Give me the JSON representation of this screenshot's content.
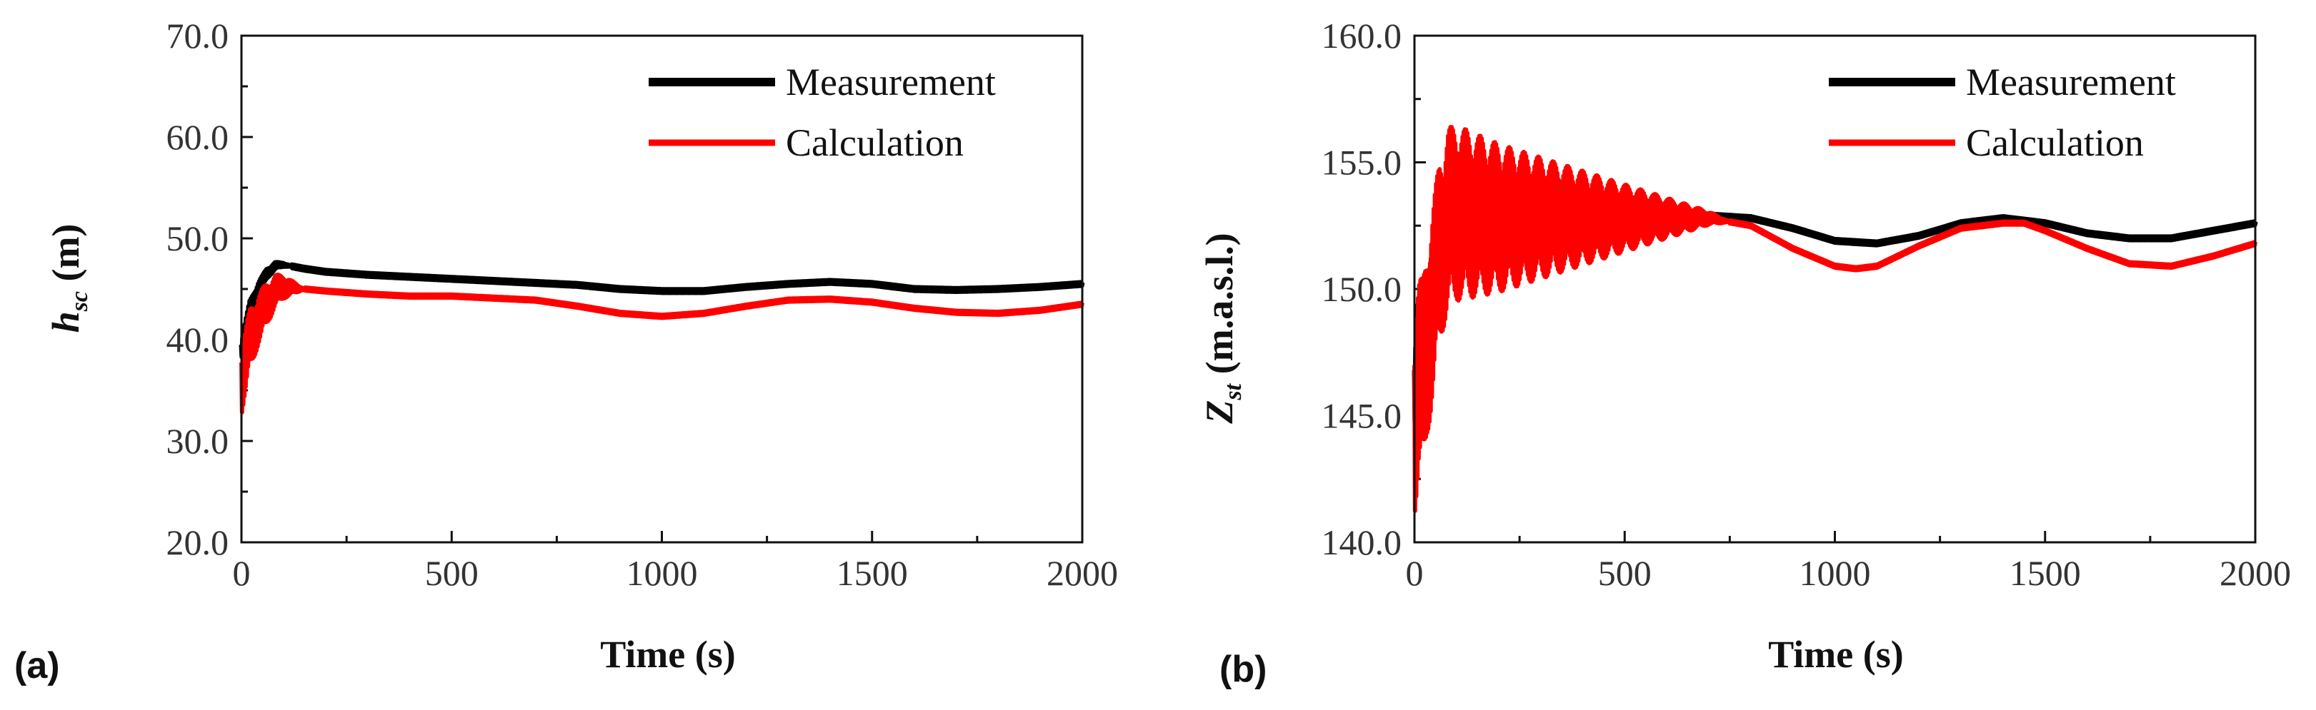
{
  "chart_data": [
    {
      "type": "line",
      "panel_label": "(a)",
      "xlabel": "Time (s)",
      "ylabel_main": "h",
      "ylabel_sub": "sc",
      "ylabel_unit": " (m)",
      "xlim": [
        0,
        2000
      ],
      "ylim": [
        20,
        70
      ],
      "x_ticks": [
        0,
        500,
        1000,
        1500,
        2000
      ],
      "x_tick_labels": [
        "0",
        "500",
        "1000",
        "1500",
        "2000"
      ],
      "y_ticks": [
        20,
        30,
        40,
        50,
        60,
        70
      ],
      "y_tick_labels": [
        "20.0",
        "30.0",
        "40.0",
        "50.0",
        "60.0",
        "70.0"
      ],
      "legend_position": "top-right",
      "series": [
        {
          "name": "Measurement",
          "color": "#000000",
          "x": [
            0,
            10,
            20,
            40,
            60,
            80,
            100,
            150,
            200,
            300,
            400,
            500,
            600,
            700,
            800,
            900,
            1000,
            1100,
            1200,
            1300,
            1400,
            1500,
            1600,
            1700,
            1800,
            1900,
            2000
          ],
          "y": [
            39,
            41,
            43,
            45,
            46.5,
            47.3,
            47.4,
            47.0,
            46.7,
            46.4,
            46.2,
            46.0,
            45.8,
            45.6,
            45.4,
            45.0,
            44.8,
            44.8,
            45.2,
            45.5,
            45.7,
            45.5,
            45.0,
            44.9,
            45.0,
            45.2,
            45.5
          ],
          "noise_until": 120,
          "noise_amplitude": 1.0
        },
        {
          "name": "Calculation",
          "color": "#ff0000",
          "x": [
            0,
            10,
            20,
            40,
            60,
            80,
            100,
            150,
            200,
            300,
            400,
            500,
            600,
            700,
            800,
            900,
            1000,
            1100,
            1200,
            1300,
            1400,
            1500,
            1600,
            1700,
            1800,
            1900,
            2000
          ],
          "y": [
            36,
            38,
            40,
            42,
            43.5,
            44.8,
            45.2,
            45.0,
            44.8,
            44.5,
            44.3,
            44.3,
            44.1,
            43.9,
            43.3,
            42.6,
            42.3,
            42.6,
            43.3,
            43.9,
            44.0,
            43.7,
            43.1,
            42.7,
            42.6,
            42.9,
            43.5
          ],
          "noise_until": 150,
          "noise_amplitude": 3.5
        }
      ]
    },
    {
      "type": "line",
      "panel_label": "(b)",
      "xlabel": "Time (s)",
      "ylabel_main": "Z",
      "ylabel_sub": "st",
      "ylabel_unit": " (m.a.s.l.)",
      "xlim": [
        0,
        2000
      ],
      "ylim": [
        140,
        160
      ],
      "x_ticks": [
        0,
        500,
        1000,
        1500,
        2000
      ],
      "x_tick_labels": [
        "0",
        "500",
        "1000",
        "1500",
        "2000"
      ],
      "y_ticks": [
        140,
        145,
        150,
        155,
        160
      ],
      "y_tick_labels": [
        "140.0",
        "145.0",
        "150.0",
        "155.0",
        "160.0"
      ],
      "legend_position": "top-right",
      "series": [
        {
          "name": "Measurement",
          "color": "#000000",
          "x": [
            0,
            10,
            20,
            30,
            40,
            60,
            80,
            100,
            150,
            200,
            300,
            400,
            500,
            600,
            700,
            800,
            900,
            1000,
            1100,
            1200,
            1300,
            1400,
            1500,
            1600,
            1700,
            1800,
            1900,
            2000
          ],
          "y": [
            146,
            148.5,
            147.5,
            149.5,
            150.5,
            152,
            154,
            154.5,
            153.8,
            153.5,
            153.4,
            153.2,
            153.1,
            153.0,
            152.9,
            152.8,
            152.4,
            151.9,
            151.8,
            152.1,
            152.6,
            152.8,
            152.6,
            152.2,
            152.0,
            152.0,
            152.3,
            152.6
          ],
          "noise_until": 100,
          "noise_amplitude": 1.6
        },
        {
          "name": "Calculation",
          "color": "#ff0000",
          "x": [
            0,
            10,
            20,
            30,
            40,
            60,
            80,
            100,
            150,
            200,
            300,
            400,
            500,
            600,
            700,
            800,
            900,
            1000,
            1050,
            1100,
            1200,
            1300,
            1400,
            1450,
            1500,
            1600,
            1700,
            1800,
            1900,
            2000
          ],
          "y": [
            145,
            146.5,
            146.5,
            148,
            149,
            151.5,
            152.8,
            153.0,
            152.9,
            152.8,
            152.8,
            152.8,
            152.8,
            152.8,
            152.8,
            152.5,
            151.6,
            150.9,
            150.8,
            150.9,
            151.7,
            152.4,
            152.6,
            152.6,
            152.3,
            151.6,
            151.0,
            150.9,
            151.3,
            151.8
          ],
          "noise_until": 750,
          "noise_amplitude": 4.0
        }
      ]
    }
  ]
}
